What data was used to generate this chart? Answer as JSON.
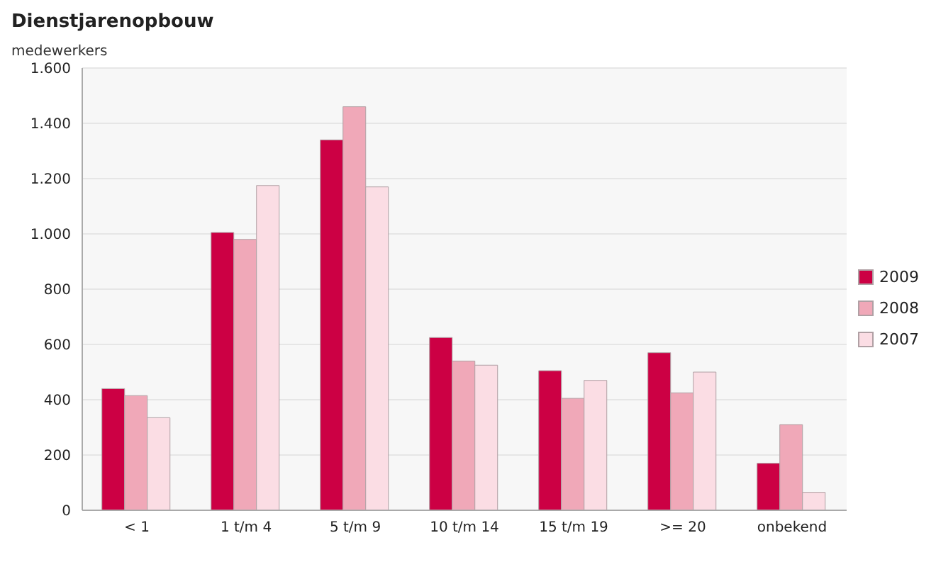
{
  "chart_data": {
    "type": "bar",
    "title": "Dienstjarenopbouw",
    "ylabel": "medewerkers",
    "categories": [
      "< 1",
      "1 t/m 4",
      "5 t/m 9",
      "10 t/m 14",
      "15 t/m 19",
      ">= 20",
      "onbekend"
    ],
    "series": [
      {
        "name": "2009",
        "color": "#cc0044",
        "values": [
          440,
          1005,
          1340,
          625,
          505,
          570,
          170
        ]
      },
      {
        "name": "2008",
        "color": "#f0a8b8",
        "values": [
          415,
          980,
          1460,
          540,
          405,
          425,
          310
        ]
      },
      {
        "name": "2007",
        "color": "#fbdde4",
        "values": [
          335,
          1175,
          1170,
          525,
          470,
          500,
          65
        ]
      }
    ],
    "ylim": [
      0,
      1600
    ],
    "yticks": [
      0,
      {
        "value": 200,
        "label": "200"
      },
      {
        "value": 400,
        "label": "400"
      },
      {
        "value": 600,
        "label": "600"
      },
      {
        "value": 800,
        "label": "800"
      },
      {
        "value": 1000,
        "label": "1.000"
      },
      {
        "value": 1200,
        "label": "1.200"
      },
      {
        "value": 1400,
        "label": "1.400"
      },
      {
        "value": 1600,
        "label": "1.600"
      }
    ],
    "grid": "y",
    "legend": "right"
  }
}
